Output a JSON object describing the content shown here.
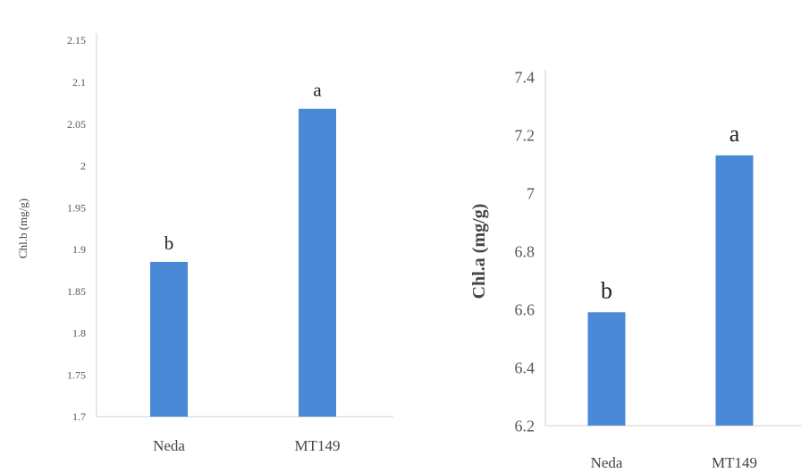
{
  "chart_data": [
    {
      "type": "bar",
      "categories": [
        "Neda",
        "MT149"
      ],
      "values": [
        1.885,
        2.068
      ],
      "significance_labels": [
        "b",
        "a"
      ],
      "ylabel": "Chl.b (mg/g)",
      "xlabel": "",
      "title": "",
      "ylim": [
        1.7,
        2.15
      ],
      "yticks": [
        "1.7",
        "1.75",
        "1.8",
        "1.85",
        "1.9",
        "1.95",
        "2",
        "2.05",
        "2.1",
        "2.15"
      ],
      "bar_color": "#4a89d6",
      "grid": false
    },
    {
      "type": "bar",
      "categories": [
        "Neda",
        "MT149"
      ],
      "values": [
        6.59,
        7.13
      ],
      "significance_labels": [
        "b",
        "a"
      ],
      "ylabel": "Chl.a (mg/g)",
      "xlabel": "",
      "title": "",
      "ylim": [
        6.2,
        7.4
      ],
      "yticks": [
        "6.2",
        "6.4",
        "6.6",
        "6.8",
        "7",
        "7.2",
        "7.4"
      ],
      "bar_color": "#4a89d6",
      "grid": false
    }
  ]
}
